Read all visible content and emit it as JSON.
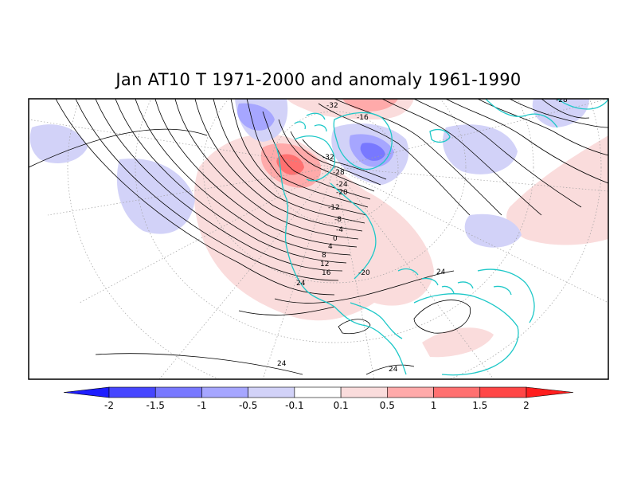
{
  "title": "Jan AT10 T 1971-2000 and anomaly 1961-1990",
  "colors": {
    "coast": "#1ec8c8",
    "contour": "#000000",
    "grid": "#a0a0a0"
  },
  "colorbar": {
    "boundaries": [
      "-2",
      "-1.5",
      "-1",
      "-0.5",
      "-0.1",
      "0.1",
      "0.5",
      "1",
      "1.5",
      "2"
    ],
    "colors": [
      "#1e1eff",
      "#4646ff",
      "#7878ff",
      "#a6a6ff",
      "#d2d2f8",
      "#ffffff",
      "#fadcdc",
      "#ffaaaa",
      "#ff7070",
      "#ff4646",
      "#ff1e1e"
    ]
  },
  "contour_labels": [
    "-32",
    "-16",
    "-32",
    "-28",
    "-24",
    "-20",
    "-12",
    "-8",
    "-4",
    "0",
    "4",
    "8",
    "12",
    "16",
    "-20",
    "24",
    "24",
    "24",
    "24",
    "-28"
  ]
}
